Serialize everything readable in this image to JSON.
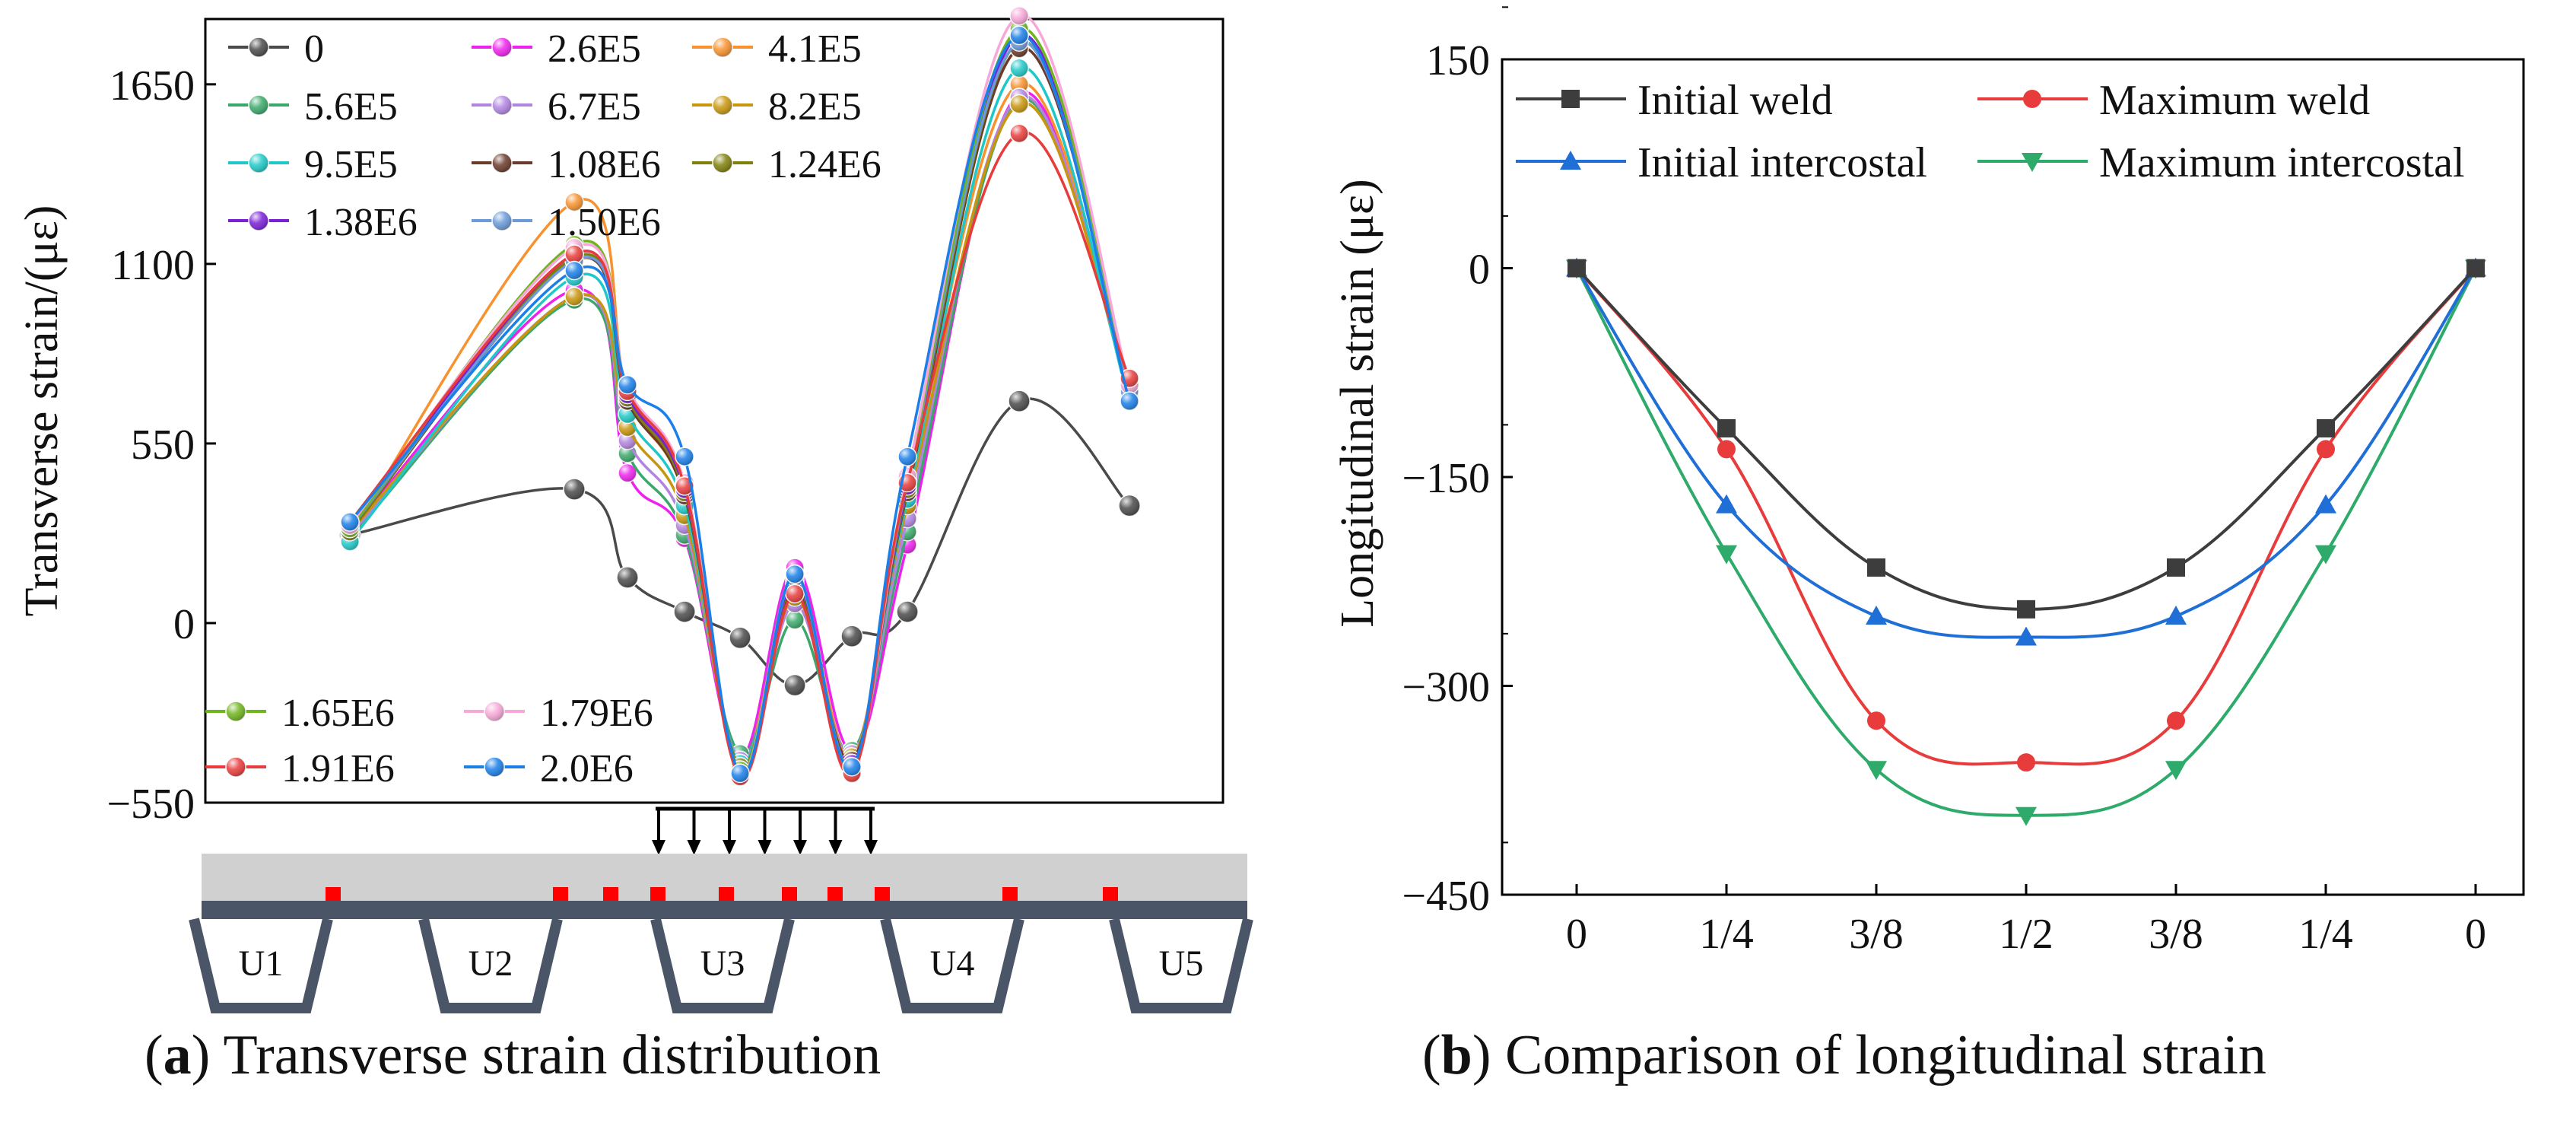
{
  "captions": {
    "a": {
      "letter": "a",
      "text": "Transverse strain distribution"
    },
    "b": {
      "letter": "b",
      "text": "Comparison of longitudinal strain"
    }
  },
  "chart_data": [
    {
      "panel": "a",
      "type": "line",
      "title": "",
      "xlabel": "",
      "ylabel": "Transverse strain/(με)",
      "ylim": [
        -550,
        1850
      ],
      "yticks": [
        -550,
        0,
        550,
        1100,
        1650
      ],
      "ytick_labels": [
        "−550",
        "0",
        "550",
        "1100",
        "1650"
      ],
      "x": [
        1,
        2,
        3,
        4,
        5,
        6,
        7,
        8,
        9,
        10,
        11,
        12,
        13
      ],
      "legend_position": "top-left and lower-left",
      "series": [
        {
          "name": "0",
          "color": "#4a4a4a",
          "marker_size": 14,
          "values": [
            270,
            410,
            140,
            35,
            -45,
            -190,
            -40,
            35,
            680,
            360,
            null,
            null,
            null
          ]
        },
        {
          "name": "2.6E5",
          "color": "#ee22ee",
          "values": [
            280,
            1020,
            460,
            260,
            -410,
            170,
            -390,
            240,
            1620,
            700,
            null,
            null,
            null
          ]
        },
        {
          "name": "4.1E5",
          "color": "#f7922e",
          "values": [
            270,
            1290,
            700,
            390,
            -420,
            120,
            -400,
            400,
            1650,
            710,
            null,
            null,
            null
          ]
        },
        {
          "name": "5.6E5",
          "color": "#3aa86a",
          "values": [
            260,
            990,
            520,
            270,
            -400,
            10,
            -390,
            280,
            1600,
            700,
            null,
            null,
            null
          ]
        },
        {
          "name": "6.7E5",
          "color": "#b184e0",
          "values": [
            270,
            1000,
            560,
            300,
            -420,
            60,
            -400,
            320,
            1610,
            700,
            null,
            null,
            null
          ]
        },
        {
          "name": "8.2E5",
          "color": "#c8960c",
          "values": [
            280,
            1000,
            600,
            330,
            -430,
            80,
            -410,
            360,
            1590,
            710,
            null,
            null,
            null
          ]
        },
        {
          "name": "9.5E5",
          "color": "#1fc8c8",
          "values": [
            250,
            1060,
            640,
            360,
            -430,
            100,
            -420,
            380,
            1700,
            680,
            null,
            null,
            null
          ]
        },
        {
          "name": "1.08E6",
          "color": "#6b3a2a",
          "values": [
            280,
            1110,
            680,
            390,
            -440,
            110,
            -420,
            400,
            1760,
            720,
            null,
            null,
            null
          ]
        },
        {
          "name": "1.24E6",
          "color": "#7f7f0a",
          "values": [
            280,
            1120,
            690,
            400,
            -440,
            120,
            -430,
            410,
            1780,
            720,
            null,
            null,
            null
          ]
        },
        {
          "name": "1.38E6",
          "color": "#7a1fd6",
          "values": [
            290,
            1130,
            700,
            410,
            -450,
            130,
            -430,
            420,
            1800,
            730,
            null,
            null,
            null
          ]
        },
        {
          "name": "1.50E6",
          "color": "#6a9ad8",
          "values": [
            290,
            1110,
            710,
            420,
            -450,
            140,
            -440,
            430,
            1780,
            710,
            null,
            null,
            null
          ]
        },
        {
          "name": "1.65E6",
          "color": "#6fb51e",
          "values": [
            290,
            1160,
            720,
            430,
            -450,
            150,
            -440,
            440,
            1820,
            730,
            null,
            null,
            null
          ]
        },
        {
          "name": "1.79E6",
          "color": "#f7a8d8",
          "values": [
            300,
            1150,
            720,
            430,
            -460,
            150,
            -450,
            450,
            1860,
            730,
            null,
            null,
            null
          ]
        },
        {
          "name": "1.91E6",
          "color": "#e83c3c",
          "values": [
            310,
            1130,
            710,
            420,
            -470,
            90,
            -460,
            430,
            1500,
            750,
            null,
            null,
            null
          ]
        },
        {
          "name": "2.0E6",
          "color": "#1a7fe8",
          "values": [
            310,
            1080,
            730,
            510,
            -460,
            150,
            -440,
            510,
            1800,
            680,
            null,
            null,
            null
          ]
        }
      ],
      "legend_entries_top": [
        "0",
        "2.6E5",
        "4.1E5",
        "5.6E5",
        "6.7E5",
        "8.2E5",
        "9.5E5",
        "1.08E6",
        "1.24E6",
        "1.38E6",
        "1.50E6"
      ],
      "legend_entries_bottom": [
        "1.65E6",
        "1.79E6",
        "1.91E6",
        "2.0E6"
      ],
      "deck_labels": [
        "U1",
        "U2",
        "U3",
        "U4",
        "U5"
      ]
    },
    {
      "panel": "b",
      "type": "line",
      "title": "",
      "xlabel": "",
      "ylabel": "Longitudinal strain (με)",
      "ylim": [
        -450,
        150
      ],
      "yticks": [
        -450,
        -300,
        -150,
        0,
        150
      ],
      "ytick_labels": [
        "−450",
        "−300",
        "−150",
        "0",
        "150"
      ],
      "categories": [
        "0",
        "1/4",
        "3/8",
        "1/2",
        "3/8",
        "1/4",
        "0"
      ],
      "legend_position": "top",
      "series": [
        {
          "name": "Initial  weld",
          "color": "#3d3d3d",
          "marker": "square",
          "values": [
            0,
            -115,
            -215,
            -245,
            -215,
            -115,
            0
          ]
        },
        {
          "name": "Maximum  weld",
          "color": "#e83c3c",
          "marker": "circle",
          "values": [
            0,
            -130,
            -325,
            -355,
            -325,
            -130,
            0
          ]
        },
        {
          "name": "Initial intercostal",
          "color": "#1f6fd6",
          "marker": "triangle-up",
          "values": [
            0,
            -170,
            -250,
            -265,
            -250,
            -170,
            0
          ]
        },
        {
          "name": "Maximum intercostal",
          "color": "#2eaa6a",
          "marker": "triangle-down",
          "values": [
            0,
            -205,
            -360,
            -393,
            -360,
            -205,
            0
          ]
        }
      ]
    }
  ]
}
